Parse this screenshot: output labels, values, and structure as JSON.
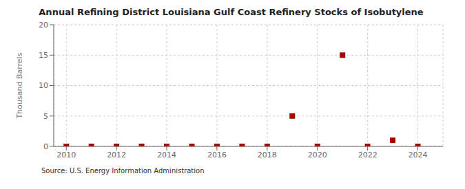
{
  "chart_data": {
    "type": "scatter",
    "title": "Annual Refining District Louisiana Gulf Coast Refinery Stocks of Isobutylene",
    "y_label": "Thousand Barrels",
    "annotations": [
      "Source: U.S. Energy Information Administration"
    ],
    "x": [
      2010,
      2011,
      2012,
      2013,
      2014,
      2015,
      2016,
      2017,
      2018,
      2019,
      2020,
      2021,
      2022,
      2023,
      2024
    ],
    "values": [
      0,
      0,
      0,
      0,
      0,
      0,
      0,
      0,
      0,
      5,
      0,
      15,
      0,
      1,
      0
    ],
    "color": "#aa0000",
    "marker": "square",
    "xlim": [
      2009.5,
      2025.0
    ],
    "ylim": [
      0,
      20
    ],
    "xticks": [
      2010,
      2012,
      2014,
      2016,
      2018,
      2020,
      2022,
      2024
    ],
    "yticks": [
      0,
      5,
      10,
      15,
      20
    ],
    "grid": true
  }
}
